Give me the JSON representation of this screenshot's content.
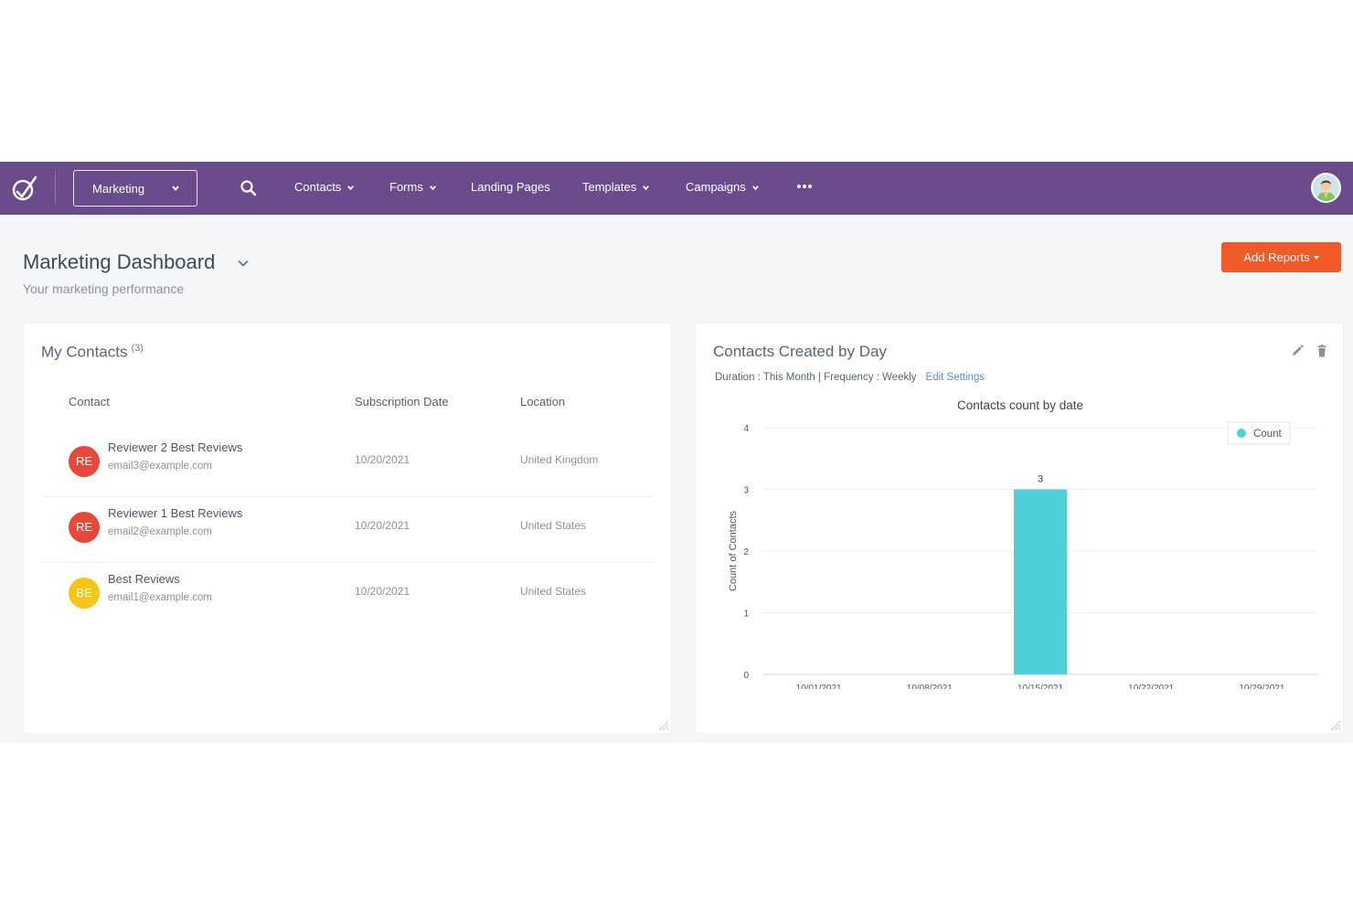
{
  "nav": {
    "app_selector": "Marketing",
    "items": [
      {
        "label": "Contacts",
        "dropdown": true
      },
      {
        "label": "Forms",
        "dropdown": true
      },
      {
        "label": "Landing Pages",
        "dropdown": false
      },
      {
        "label": "Templates",
        "dropdown": true
      },
      {
        "label": "Campaigns",
        "dropdown": true
      }
    ],
    "more_icon": "ellipsis-icon",
    "colors": {
      "bar": "#6a4c8c"
    }
  },
  "header": {
    "title": "Marketing Dashboard",
    "subtitle": "Your marketing performance",
    "add_reports": "Add Reports",
    "accent": "#f05a28"
  },
  "contacts_card": {
    "title": "My Contacts",
    "count": "(3)",
    "columns": [
      "Contact",
      "Subscription Date",
      "Location"
    ],
    "rows": [
      {
        "initials": "RE",
        "color": "#e8483a",
        "name": "Reviewer 2 Best Reviews",
        "email": "email3@example.com",
        "date": "10/20/2021",
        "location": "United Kingdom"
      },
      {
        "initials": "RE",
        "color": "#e8483a",
        "name": "Reviewer 1 Best Reviews",
        "email": "email2@example.com",
        "date": "10/20/2021",
        "location": "United States"
      },
      {
        "initials": "BE",
        "color": "#f5c518",
        "name": "Best Reviews",
        "email": "email1@example.com",
        "date": "10/20/2021",
        "location": "United States"
      }
    ]
  },
  "chart_card": {
    "title": "Contacts Created by Day",
    "settings": "Duration : This Month | Frequency : Weekly",
    "edit_settings": "Edit Settings"
  },
  "chart_data": {
    "type": "bar",
    "title": "Contacts count by date",
    "xlabel": "",
    "ylabel": "Count of Contacts",
    "categories": [
      "10/01/2021",
      "10/08/2021",
      "10/15/2021",
      "10/22/2021",
      "10/29/2021"
    ],
    "series": [
      {
        "name": "Count",
        "values": [
          0,
          0,
          3,
          0,
          0
        ],
        "color": "#4fd0d8"
      }
    ],
    "data_labels": [
      "",
      "",
      "3",
      "",
      ""
    ],
    "ylim": [
      0,
      4
    ],
    "yticks": [
      0,
      1,
      2,
      3,
      4
    ],
    "grid": true,
    "legend": "top-right"
  }
}
